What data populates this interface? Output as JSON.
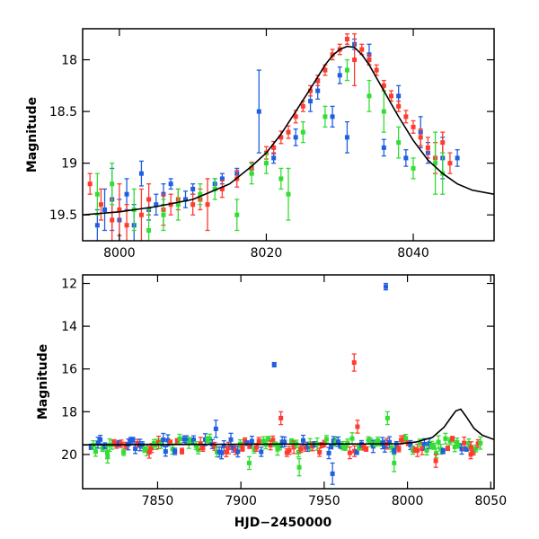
{
  "chart_data": [
    {
      "type": "scatter",
      "ylabel": "Magnitude",
      "xlabel": "",
      "xlim": [
        7995,
        8051
      ],
      "ylim": [
        19.75,
        17.7
      ],
      "y_inverted": true,
      "x_ticks": [
        8000,
        8020,
        8040
      ],
      "y_ticks": [
        18,
        18.5,
        19,
        19.5
      ],
      "colors": {
        "blue": "#1f5fe0",
        "red": "#ff3b2f",
        "green": "#33dd33",
        "model": "#000000"
      },
      "model_curve": {
        "name": "",
        "x": [
          7995,
          8000,
          8005,
          8010,
          8015,
          8018,
          8020,
          8022,
          8024,
          8026,
          8028,
          8029,
          8030,
          8031,
          8032,
          8033,
          8034,
          8036,
          8038,
          8040,
          8042,
          8044,
          8046,
          8048,
          8051
        ],
        "y": [
          19.5,
          19.47,
          19.42,
          19.35,
          19.2,
          19.03,
          18.9,
          18.72,
          18.5,
          18.28,
          18.05,
          17.96,
          17.9,
          17.87,
          17.88,
          17.95,
          18.05,
          18.3,
          18.55,
          18.78,
          18.97,
          19.1,
          19.2,
          19.26,
          19.3
        ]
      },
      "series": [
        {
          "color": "blue",
          "points": [
            {
              "x": 7997,
              "y": 19.6,
              "e": 0.15
            },
            {
              "x": 7998,
              "y": 19.45,
              "e": 0.2
            },
            {
              "x": 7999,
              "y": 19.35,
              "e": 0.3
            },
            {
              "x": 8000,
              "y": 19.55,
              "e": 0.2
            },
            {
              "x": 8001,
              "y": 19.3,
              "e": 0.15
            },
            {
              "x": 8002,
              "y": 19.6,
              "e": 0.2
            },
            {
              "x": 8003,
              "y": 19.1,
              "e": 0.12
            },
            {
              "x": 8004,
              "y": 19.45,
              "e": 0.1
            },
            {
              "x": 8005,
              "y": 19.4,
              "e": 0.1
            },
            {
              "x": 8006,
              "y": 19.3,
              "e": 0.1
            },
            {
              "x": 8007,
              "y": 19.2,
              "e": 0.05
            },
            {
              "x": 8009,
              "y": 19.35,
              "e": 0.08
            },
            {
              "x": 8010,
              "y": 19.25,
              "e": 0.05
            },
            {
              "x": 8013,
              "y": 19.2,
              "e": 0.05
            },
            {
              "x": 8014,
              "y": 19.15,
              "e": 0.05
            },
            {
              "x": 8016,
              "y": 19.1,
              "e": 0.05
            },
            {
              "x": 8018,
              "y": 19.05,
              "e": 0.05
            },
            {
              "x": 8019,
              "y": 18.5,
              "e": 0.4
            },
            {
              "x": 8021,
              "y": 18.95,
              "e": 0.05
            },
            {
              "x": 8024,
              "y": 18.75,
              "e": 0.08
            },
            {
              "x": 8026,
              "y": 18.4,
              "e": 0.1
            },
            {
              "x": 8027,
              "y": 18.3,
              "e": 0.08
            },
            {
              "x": 8029,
              "y": 18.55,
              "e": 0.1
            },
            {
              "x": 8030,
              "y": 18.15,
              "e": 0.08
            },
            {
              "x": 8031,
              "y": 18.75,
              "e": 0.15
            },
            {
              "x": 8032,
              "y": 17.85,
              "e": 0.05
            },
            {
              "x": 8034,
              "y": 17.95,
              "e": 0.1
            },
            {
              "x": 8036,
              "y": 18.85,
              "e": 0.08
            },
            {
              "x": 8038,
              "y": 18.35,
              "e": 0.1
            },
            {
              "x": 8039,
              "y": 18.95,
              "e": 0.08
            },
            {
              "x": 8041,
              "y": 18.7,
              "e": 0.15
            },
            {
              "x": 8042,
              "y": 18.9,
              "e": 0.1
            },
            {
              "x": 8044,
              "y": 18.95,
              "e": 0.2
            },
            {
              "x": 8046,
              "y": 18.95,
              "e": 0.08
            }
          ]
        },
        {
          "color": "red",
          "points": [
            {
              "x": 7996,
              "y": 19.2,
              "e": 0.1
            },
            {
              "x": 7997.5,
              "y": 19.4,
              "e": 0.15
            },
            {
              "x": 7999,
              "y": 19.55,
              "e": 0.2
            },
            {
              "x": 8000,
              "y": 19.45,
              "e": 0.25
            },
            {
              "x": 8001,
              "y": 19.6,
              "e": 0.2
            },
            {
              "x": 8003,
              "y": 19.5,
              "e": 0.25
            },
            {
              "x": 8004,
              "y": 19.35,
              "e": 0.15
            },
            {
              "x": 8006,
              "y": 19.45,
              "e": 0.15
            },
            {
              "x": 8007,
              "y": 19.4,
              "e": 0.1
            },
            {
              "x": 8008,
              "y": 19.35,
              "e": 0.1
            },
            {
              "x": 8010,
              "y": 19.4,
              "e": 0.1
            },
            {
              "x": 8011,
              "y": 19.35,
              "e": 0.1
            },
            {
              "x": 8012,
              "y": 19.4,
              "e": 0.25
            },
            {
              "x": 8014,
              "y": 19.25,
              "e": 0.08
            },
            {
              "x": 8016,
              "y": 19.15,
              "e": 0.08
            },
            {
              "x": 8018,
              "y": 19.05,
              "e": 0.06
            },
            {
              "x": 8020,
              "y": 18.9,
              "e": 0.06
            },
            {
              "x": 8021,
              "y": 18.85,
              "e": 0.06
            },
            {
              "x": 8022,
              "y": 18.75,
              "e": 0.06
            },
            {
              "x": 8023,
              "y": 18.7,
              "e": 0.06
            },
            {
              "x": 8024,
              "y": 18.55,
              "e": 0.06
            },
            {
              "x": 8025,
              "y": 18.45,
              "e": 0.05
            },
            {
              "x": 8026,
              "y": 18.3,
              "e": 0.05
            },
            {
              "x": 8027,
              "y": 18.2,
              "e": 0.05
            },
            {
              "x": 8028,
              "y": 18.1,
              "e": 0.05
            },
            {
              "x": 8029,
              "y": 17.95,
              "e": 0.05
            },
            {
              "x": 8030,
              "y": 17.9,
              "e": 0.05
            },
            {
              "x": 8031,
              "y": 17.8,
              "e": 0.05
            },
            {
              "x": 8032,
              "y": 18.0,
              "e": 0.25
            },
            {
              "x": 8033,
              "y": 17.9,
              "e": 0.05
            },
            {
              "x": 8034,
              "y": 18.0,
              "e": 0.05
            },
            {
              "x": 8035,
              "y": 18.1,
              "e": 0.05
            },
            {
              "x": 8036,
              "y": 18.25,
              "e": 0.05
            },
            {
              "x": 8037,
              "y": 18.35,
              "e": 0.05
            },
            {
              "x": 8038,
              "y": 18.45,
              "e": 0.05
            },
            {
              "x": 8039,
              "y": 18.55,
              "e": 0.06
            },
            {
              "x": 8040,
              "y": 18.65,
              "e": 0.06
            },
            {
              "x": 8041,
              "y": 18.75,
              "e": 0.08
            },
            {
              "x": 8042,
              "y": 18.85,
              "e": 0.1
            },
            {
              "x": 8043,
              "y": 18.95,
              "e": 0.15
            },
            {
              "x": 8044,
              "y": 18.8,
              "e": 0.1
            },
            {
              "x": 8045,
              "y": 19.0,
              "e": 0.1
            }
          ]
        },
        {
          "color": "green",
          "points": [
            {
              "x": 7997,
              "y": 19.3,
              "e": 0.2
            },
            {
              "x": 7999,
              "y": 19.2,
              "e": 0.2
            },
            {
              "x": 8002,
              "y": 19.45,
              "e": 0.2
            },
            {
              "x": 8004,
              "y": 19.65,
              "e": 0.2
            },
            {
              "x": 8006,
              "y": 19.5,
              "e": 0.15
            },
            {
              "x": 8008,
              "y": 19.4,
              "e": 0.15
            },
            {
              "x": 8011,
              "y": 19.3,
              "e": 0.1
            },
            {
              "x": 8013,
              "y": 19.25,
              "e": 0.1
            },
            {
              "x": 8016,
              "y": 19.5,
              "e": 0.15
            },
            {
              "x": 8018,
              "y": 19.1,
              "e": 0.1
            },
            {
              "x": 8020,
              "y": 19.0,
              "e": 0.1
            },
            {
              "x": 8022,
              "y": 19.15,
              "e": 0.1
            },
            {
              "x": 8023,
              "y": 19.3,
              "e": 0.25
            },
            {
              "x": 8025,
              "y": 18.7,
              "e": 0.1
            },
            {
              "x": 8028,
              "y": 18.55,
              "e": 0.1
            },
            {
              "x": 8031,
              "y": 18.1,
              "e": 0.1
            },
            {
              "x": 8034,
              "y": 18.35,
              "e": 0.15
            },
            {
              "x": 8036,
              "y": 18.5,
              "e": 0.2
            },
            {
              "x": 8038,
              "y": 18.8,
              "e": 0.15
            },
            {
              "x": 8040,
              "y": 19.05,
              "e": 0.1
            },
            {
              "x": 8043,
              "y": 19.0,
              "e": 0.3
            },
            {
              "x": 8044,
              "y": 19.1,
              "e": 0.2
            }
          ]
        }
      ]
    },
    {
      "type": "scatter",
      "ylabel": "Magnitude",
      "xlabel": "HJD−2450000",
      "xlim": [
        7805,
        8052
      ],
      "ylim": [
        21.6,
        11.6
      ],
      "y_inverted": true,
      "x_ticks": [
        7850,
        7900,
        7950,
        8000,
        8050
      ],
      "y_ticks": [
        12,
        14,
        16,
        18,
        20
      ],
      "colors": {
        "blue": "#1f5fe0",
        "red": "#ff3b2f",
        "green": "#33dd33",
        "model": "#000000"
      },
      "model_curve": {
        "name": "",
        "x": [
          7805,
          7900,
          7995,
          8005,
          8015,
          8022,
          8026,
          8029,
          8032,
          8035,
          8040,
          8045,
          8052
        ],
        "y": [
          19.55,
          19.52,
          19.5,
          19.42,
          19.2,
          18.72,
          18.28,
          17.96,
          17.88,
          18.2,
          18.78,
          19.1,
          19.3
        ]
      },
      "band": {
        "x_start": 7810,
        "x_end": 8045,
        "y_center": 19.6,
        "spread": 0.35
      },
      "outliers": [
        {
          "x": 7987,
          "y": 12.15,
          "e": 0.15,
          "color": "blue"
        },
        {
          "x": 7920,
          "y": 15.8,
          "e": 0.1,
          "color": "blue"
        },
        {
          "x": 7968,
          "y": 15.7,
          "e": 0.4,
          "color": "red"
        },
        {
          "x": 7924,
          "y": 18.3,
          "e": 0.3,
          "color": "red"
        },
        {
          "x": 7970,
          "y": 18.7,
          "e": 0.3,
          "color": "red"
        },
        {
          "x": 7988,
          "y": 18.3,
          "e": 0.3,
          "color": "green"
        },
        {
          "x": 7885,
          "y": 18.8,
          "e": 0.4,
          "color": "blue"
        },
        {
          "x": 7955,
          "y": 20.9,
          "e": 0.5,
          "color": "blue"
        },
        {
          "x": 8017,
          "y": 20.3,
          "e": 0.3,
          "color": "red"
        },
        {
          "x": 8038,
          "y": 20.0,
          "e": 0.2,
          "color": "red"
        },
        {
          "x": 7820,
          "y": 20.1,
          "e": 0.3,
          "color": "green"
        },
        {
          "x": 7905,
          "y": 20.4,
          "e": 0.3,
          "color": "green"
        },
        {
          "x": 7935,
          "y": 20.6,
          "e": 0.4,
          "color": "green"
        },
        {
          "x": 7992,
          "y": 20.4,
          "e": 0.4,
          "color": "green"
        }
      ]
    }
  ]
}
